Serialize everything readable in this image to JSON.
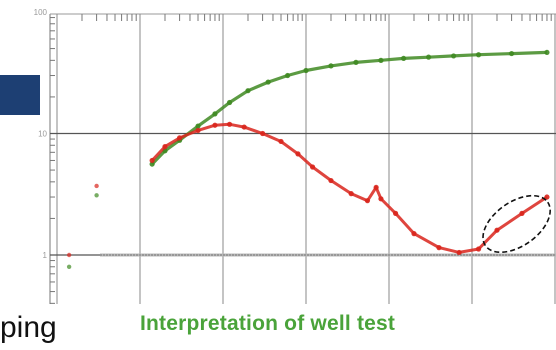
{
  "caption": "Interpretation of well test",
  "partial_text": "ping",
  "chart_data": {
    "type": "scatter",
    "title": "",
    "xlabel": "",
    "ylabel": "",
    "x_scale": "log",
    "y_scale": "log",
    "xlim": [
      0.001,
      1000
    ],
    "ylim": [
      1,
      100
    ],
    "ytick_labels": [
      "100",
      "10",
      "1"
    ],
    "y_ticks": [
      100,
      10,
      1
    ],
    "x_decades": [
      0.001,
      0.01,
      0.1,
      1,
      10,
      100,
      1000
    ],
    "series": [
      {
        "color": "#3f8a22",
        "points": [
          [
            0.0014,
            0.8
          ],
          [
            0.003,
            3.1
          ],
          [
            0.014,
            5.6
          ],
          [
            0.02,
            7.2
          ],
          [
            0.03,
            8.8
          ],
          [
            0.05,
            11.5
          ],
          [
            0.08,
            14.5
          ],
          [
            0.12,
            18.0
          ],
          [
            0.2,
            22.5
          ],
          [
            0.35,
            26.5
          ],
          [
            0.6,
            30.0
          ],
          [
            1.0,
            33.0
          ],
          [
            2.0,
            36.0
          ],
          [
            4.0,
            38.5
          ],
          [
            8.0,
            40.0
          ],
          [
            15.0,
            41.5
          ],
          [
            30.0,
            42.5
          ],
          [
            60.0,
            43.5
          ],
          [
            120.0,
            44.5
          ],
          [
            300.0,
            45.5
          ],
          [
            800.0,
            46.5
          ]
        ]
      },
      {
        "color": "#d9251c",
        "points": [
          [
            0.0014,
            1.0
          ],
          [
            0.003,
            3.7
          ],
          [
            0.014,
            6.0
          ],
          [
            0.02,
            7.8
          ],
          [
            0.03,
            9.2
          ],
          [
            0.05,
            10.6
          ],
          [
            0.08,
            11.7
          ],
          [
            0.12,
            11.9
          ],
          [
            0.18,
            11.3
          ],
          [
            0.3,
            10.0
          ],
          [
            0.5,
            8.6
          ],
          [
            0.8,
            6.8
          ],
          [
            1.2,
            5.3
          ],
          [
            2.0,
            4.1
          ],
          [
            3.5,
            3.2
          ],
          [
            5.5,
            2.8
          ],
          [
            7.0,
            3.6
          ],
          [
            8.0,
            2.9
          ],
          [
            12.0,
            2.2
          ],
          [
            20.0,
            1.5
          ],
          [
            40.0,
            1.15
          ],
          [
            70.0,
            1.05
          ],
          [
            120.0,
            1.12
          ],
          [
            200.0,
            1.6
          ],
          [
            400.0,
            2.2
          ],
          [
            800.0,
            3.0
          ]
        ]
      }
    ],
    "reference_line_y": 1,
    "annotation": "ellipse around late-time rising derivative"
  }
}
